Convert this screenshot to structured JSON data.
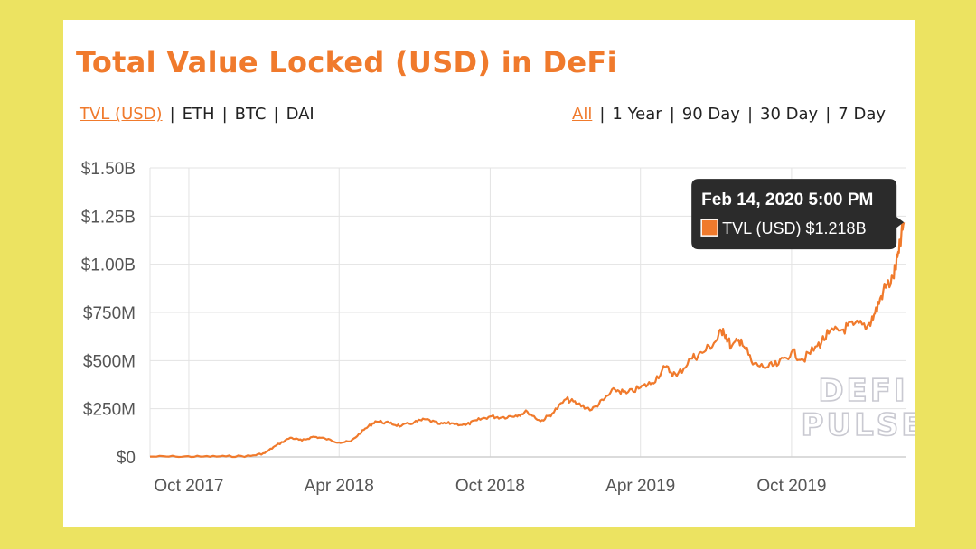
{
  "title": "Total Value Locked (USD) in DeFi",
  "metric_tabs": [
    {
      "label": "TVL (USD)",
      "active": true
    },
    {
      "label": "ETH",
      "active": false
    },
    {
      "label": "BTC",
      "active": false
    },
    {
      "label": "DAI",
      "active": false
    }
  ],
  "range_tabs": [
    {
      "label": "All",
      "active": true
    },
    {
      "label": "1 Year",
      "active": false
    },
    {
      "label": "90 Day",
      "active": false
    },
    {
      "label": "30 Day",
      "active": false
    },
    {
      "label": "7 Day",
      "active": false
    }
  ],
  "tooltip": {
    "date": "Feb 14, 2020 5:00 PM",
    "label": "TVL (USD) $1.218B"
  },
  "watermark": [
    "DEFI",
    "PULSE"
  ],
  "colors": {
    "accent": "#f07a2c",
    "background": "#ece361",
    "tooltip_bg": "#2b2b2b"
  },
  "chart_data": {
    "type": "line",
    "series": [
      {
        "name": "TVL (USD)",
        "points": [
          [
            "2017-08-15",
            2
          ],
          [
            "2017-09-15",
            2
          ],
          [
            "2017-10-15",
            2
          ],
          [
            "2017-11-15",
            3
          ],
          [
            "2017-12-15",
            5
          ],
          [
            "2018-01-01",
            20
          ],
          [
            "2018-01-15",
            60
          ],
          [
            "2018-02-01",
            100
          ],
          [
            "2018-02-15",
            85
          ],
          [
            "2018-03-01",
            105
          ],
          [
            "2018-03-15",
            95
          ],
          [
            "2018-04-01",
            75
          ],
          [
            "2018-04-15",
            80
          ],
          [
            "2018-05-01",
            140
          ],
          [
            "2018-05-15",
            185
          ],
          [
            "2018-06-01",
            175
          ],
          [
            "2018-06-15",
            160
          ],
          [
            "2018-07-01",
            180
          ],
          [
            "2018-07-15",
            195
          ],
          [
            "2018-08-01",
            170
          ],
          [
            "2018-08-15",
            175
          ],
          [
            "2018-09-01",
            165
          ],
          [
            "2018-09-15",
            190
          ],
          [
            "2018-10-01",
            210
          ],
          [
            "2018-10-15",
            205
          ],
          [
            "2018-11-01",
            215
          ],
          [
            "2018-11-15",
            235
          ],
          [
            "2018-12-01",
            185
          ],
          [
            "2018-12-15",
            225
          ],
          [
            "2019-01-01",
            300
          ],
          [
            "2019-01-15",
            275
          ],
          [
            "2019-02-01",
            245
          ],
          [
            "2019-02-15",
            295
          ],
          [
            "2019-03-01",
            350
          ],
          [
            "2019-03-15",
            330
          ],
          [
            "2019-04-01",
            360
          ],
          [
            "2019-04-15",
            385
          ],
          [
            "2019-05-01",
            465
          ],
          [
            "2019-05-15",
            420
          ],
          [
            "2019-06-01",
            510
          ],
          [
            "2019-06-15",
            540
          ],
          [
            "2019-07-01",
            600
          ],
          [
            "2019-07-10",
            665
          ],
          [
            "2019-07-20",
            570
          ],
          [
            "2019-08-01",
            610
          ],
          [
            "2019-08-15",
            480
          ],
          [
            "2019-09-01",
            465
          ],
          [
            "2019-09-15",
            480
          ],
          [
            "2019-10-01",
            545
          ],
          [
            "2019-10-15",
            505
          ],
          [
            "2019-11-01",
            575
          ],
          [
            "2019-11-15",
            640
          ],
          [
            "2019-12-01",
            660
          ],
          [
            "2019-12-15",
            685
          ],
          [
            "2020-01-01",
            680
          ],
          [
            "2020-01-10",
            745
          ],
          [
            "2020-01-20",
            860
          ],
          [
            "2020-02-01",
            930
          ],
          [
            "2020-02-08",
            1060
          ],
          [
            "2020-02-14",
            1218
          ]
        ]
      }
    ],
    "x_ticks": [
      "Oct 2017",
      "Apr 2018",
      "Oct 2018",
      "Apr 2019",
      "Oct 2019"
    ],
    "x_tick_dates": [
      "2017-10-01",
      "2018-04-01",
      "2018-10-01",
      "2019-04-01",
      "2019-10-01"
    ],
    "y_ticks": [
      "$0",
      "$250M",
      "$500M",
      "$750M",
      "$1.00B",
      "$1.25B",
      "$1.50B"
    ],
    "y_tick_values": [
      0,
      250,
      500,
      750,
      1000,
      1250,
      1500
    ],
    "ylim": [
      0,
      1500
    ],
    "xlim": [
      "2017-08-15",
      "2020-02-16"
    ],
    "unit": "USD millions",
    "grid": true,
    "legend": "none"
  }
}
